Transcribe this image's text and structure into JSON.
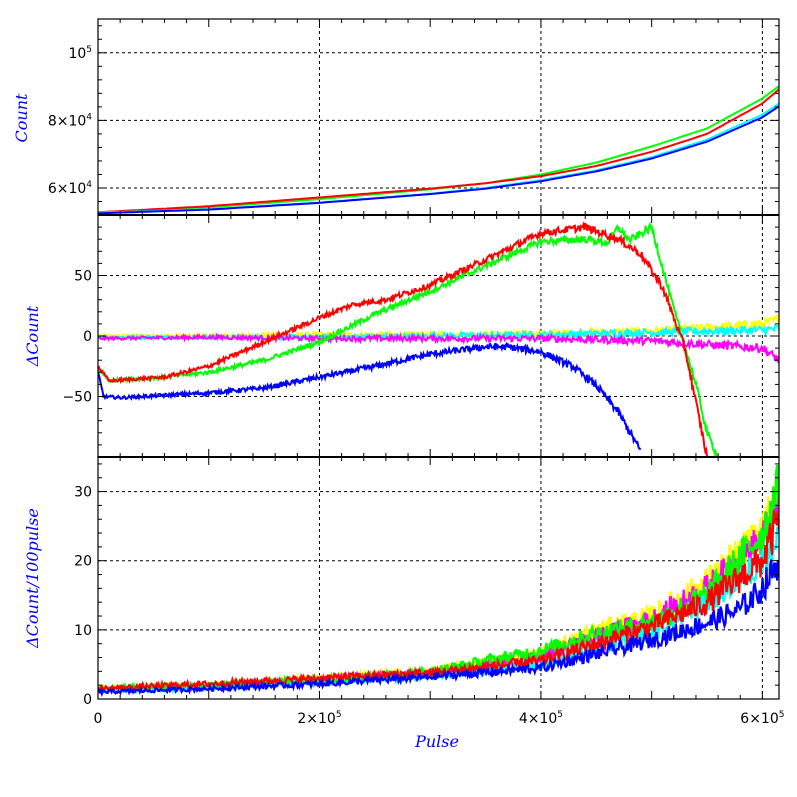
{
  "chart_data": [
    {
      "panel": "top",
      "type": "line",
      "xlabel": "Pulse",
      "ylabel": "Count",
      "xlim": [
        0,
        615000
      ],
      "ylim": [
        52000,
        110000
      ],
      "y_tick_labels": [
        {
          "value": 60000,
          "mantissa": "6×10",
          "exp": "4"
        },
        {
          "value": 80000,
          "mantissa": "8×10",
          "exp": "4"
        },
        {
          "value": 100000,
          "mantissa": "10",
          "exp": "5"
        }
      ],
      "grid": true,
      "series": [
        {
          "color": "#00ff00",
          "x": [
            0,
            100000,
            200000,
            300000,
            350000,
            400000,
            450000,
            500000,
            550000,
            600000,
            615000
          ],
          "y": [
            52800,
            54300,
            56700,
            59600,
            61400,
            64000,
            67500,
            72300,
            77600,
            86500,
            90100
          ]
        },
        {
          "color": "#ff0000",
          "x": [
            0,
            100000,
            200000,
            300000,
            350000,
            400000,
            450000,
            500000,
            550000,
            600000,
            615000
          ],
          "y": [
            52800,
            54600,
            57200,
            59800,
            61400,
            63500,
            66500,
            70700,
            76000,
            85000,
            89200
          ]
        },
        {
          "color": "#00ffff",
          "x": [
            0,
            100000,
            200000,
            300000,
            350000,
            400000,
            450000,
            500000,
            550000,
            600000,
            615000
          ],
          "y": [
            52700,
            53700,
            55700,
            58300,
            60000,
            62300,
            65200,
            69100,
            74300,
            81700,
            85000
          ]
        },
        {
          "color": "#0000ff",
          "x": [
            0,
            100000,
            200000,
            300000,
            350000,
            400000,
            450000,
            500000,
            550000,
            600000,
            615000
          ],
          "y": [
            52500,
            53600,
            55600,
            58200,
            59800,
            62000,
            64900,
            68700,
            73700,
            80900,
            84200
          ]
        }
      ]
    },
    {
      "panel": "middle",
      "type": "line",
      "xlabel": "Pulse",
      "ylabel": "ΔCount",
      "xlim": [
        0,
        615000
      ],
      "ylim": [
        -100,
        100
      ],
      "y_tick_labels": [
        {
          "value": 50,
          "label": "50"
        },
        {
          "value": 0,
          "label": "0"
        },
        {
          "value": -50,
          "label": "−50"
        }
      ],
      "grid": true,
      "series": [
        {
          "color": "#ffff00",
          "x": [
            0,
            100000,
            200000,
            300000,
            400000,
            500000,
            600000,
            615000
          ],
          "y": [
            0,
            0,
            1,
            1,
            2,
            4,
            10,
            14
          ]
        },
        {
          "color": "#00ffff",
          "x": [
            0,
            100000,
            200000,
            300000,
            400000,
            500000,
            600000,
            615000
          ],
          "y": [
            -1,
            -1,
            -1,
            0,
            1,
            3,
            5,
            6
          ]
        },
        {
          "color": "#ff00ff",
          "x": [
            0,
            100000,
            200000,
            300000,
            400000,
            500000,
            600000,
            615000
          ],
          "y": [
            -2,
            -1,
            -2,
            -2,
            -2,
            -4,
            -10,
            -20
          ]
        },
        {
          "color": "#0000ff",
          "x": [
            0,
            5000,
            20000,
            60000,
            100000,
            150000,
            200000,
            250000,
            300000,
            350000,
            370000,
            400000,
            430000,
            450000,
            470000,
            490000
          ],
          "y": [
            -30,
            -50,
            -51,
            -49,
            -47,
            -43,
            -34,
            -25,
            -15,
            -9,
            -9,
            -13,
            -26,
            -41,
            -63,
            -95
          ]
        },
        {
          "color": "#00ff00",
          "x": [
            0,
            10000,
            60000,
            100000,
            150000,
            200000,
            250000,
            300000,
            350000,
            400000,
            440000,
            460000,
            470000,
            480000,
            500000,
            520000,
            540000,
            550000,
            560000
          ],
          "y": [
            -27,
            -37,
            -34,
            -30,
            -20,
            -5,
            18,
            37,
            58,
            78,
            80,
            77,
            90,
            79,
            90,
            22,
            -40,
            -80,
            -100
          ]
        },
        {
          "color": "#ff0000",
          "x": [
            0,
            10000,
            60000,
            100000,
            150000,
            200000,
            230000,
            260000,
            300000,
            350000,
            400000,
            440000,
            470000,
            490000,
            510000,
            530000,
            550000
          ],
          "y": [
            -25,
            -37,
            -34,
            -25,
            -5,
            15,
            26,
            30,
            42,
            63,
            85,
            90,
            80,
            68,
            40,
            -10,
            -100
          ]
        }
      ]
    },
    {
      "panel": "bottom",
      "type": "line",
      "xlabel": "Pulse",
      "ylabel": "ΔCount/100pulse",
      "xlim": [
        0,
        615000
      ],
      "ylim": [
        0,
        35
      ],
      "y_tick_labels": [
        {
          "value": 0,
          "label": "0"
        },
        {
          "value": 10,
          "label": "10"
        },
        {
          "value": 20,
          "label": "20"
        },
        {
          "value": 30,
          "label": "30"
        }
      ],
      "x_tick_labels": [
        {
          "value": 0,
          "mantissa": "0",
          "exp": ""
        },
        {
          "value": 200000,
          "mantissa": "2×10",
          "exp": "5"
        },
        {
          "value": 400000,
          "mantissa": "4×10",
          "exp": "5"
        },
        {
          "value": 600000,
          "mantissa": "6×10",
          "exp": "5"
        }
      ],
      "grid": true,
      "series": [
        {
          "color": "#ffff00",
          "x": [
            0,
            100000,
            200000,
            300000,
            400000,
            450000,
            500000,
            550000,
            600000,
            615000
          ],
          "y": [
            1.5,
            2.0,
            3.0,
            4.0,
            6.5,
            10.0,
            12.0,
            17.0,
            24.0,
            30.0
          ]
        },
        {
          "color": "#ff00ff",
          "x": [
            0,
            100000,
            200000,
            300000,
            400000,
            450000,
            500000,
            550000,
            600000,
            615000
          ],
          "y": [
            1.3,
            1.8,
            2.8,
            3.8,
            6.0,
            9.0,
            11.5,
            16.0,
            23.0,
            28.0
          ]
        },
        {
          "color": "#00ffff",
          "x": [
            0,
            100000,
            200000,
            300000,
            400000,
            450000,
            500000,
            550000,
            600000,
            615000
          ],
          "y": [
            1.2,
            1.6,
            2.4,
            3.4,
            5.0,
            7.5,
            9.5,
            14.0,
            20.0,
            24.0
          ]
        },
        {
          "color": "#00ff00",
          "x": [
            0,
            100000,
            200000,
            300000,
            400000,
            450000,
            500000,
            550000,
            600000,
            615000
          ],
          "y": [
            1.5,
            2.0,
            2.8,
            4.0,
            7.0,
            9.5,
            11.0,
            15.0,
            24.0,
            31.0
          ]
        },
        {
          "color": "#ff0000",
          "x": [
            0,
            100000,
            200000,
            300000,
            400000,
            450000,
            500000,
            550000,
            600000,
            615000
          ],
          "y": [
            1.5,
            2.2,
            3.0,
            3.8,
            5.5,
            8.0,
            10.5,
            14.0,
            20.0,
            26.0
          ]
        },
        {
          "color": "#0000ff",
          "x": [
            0,
            100000,
            200000,
            300000,
            400000,
            450000,
            500000,
            550000,
            580000,
            600000,
            615000
          ],
          "y": [
            1.0,
            1.5,
            2.2,
            3.2,
            4.5,
            6.5,
            8.5,
            11.0,
            13.0,
            16.0,
            20.0
          ]
        }
      ]
    }
  ]
}
